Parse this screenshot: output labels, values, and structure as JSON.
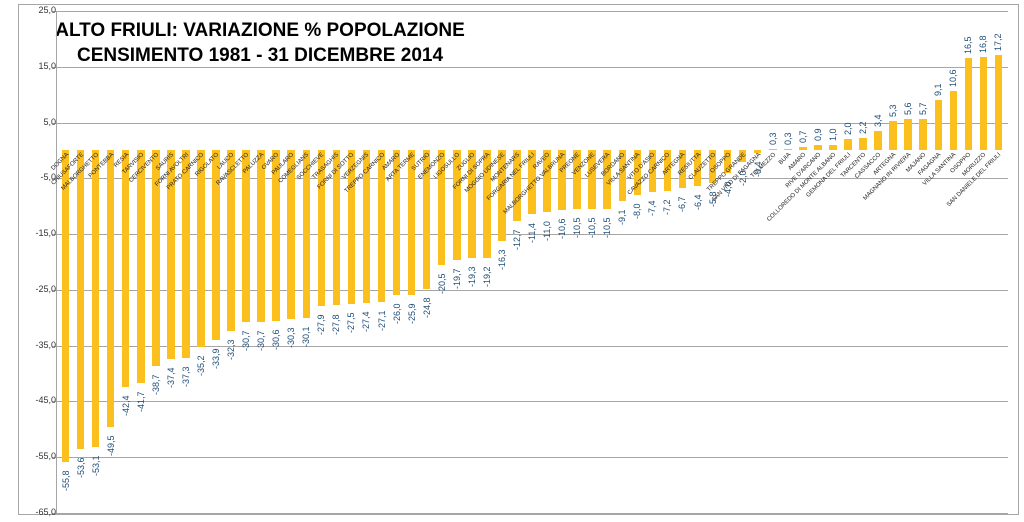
{
  "chart_data": {
    "type": "bar",
    "title": "ALTO FRIULI: VARIAZIONE % POPOLAZIONE",
    "subtitle": "CENSIMENTO 1981 - 31 DICEMBRE 2014",
    "xlabel": "",
    "ylabel": "",
    "ylim": [
      -65,
      25
    ],
    "yticks": [
      "25,0",
      "15,0",
      "5,0",
      "-5,0",
      "-15,0",
      "-25,0",
      "-35,0",
      "-45,0",
      "-55,0",
      "-65,0"
    ],
    "grid": true,
    "legend": null,
    "bar_color": "#fbbf1e",
    "label_color": "#1f4e79",
    "categories": [
      "DOGNA",
      "CHIUSAFORTE",
      "MALBORGHETTO",
      "PONTEBBA",
      "RESIA",
      "TARVISIO",
      "CERCIVENTO",
      "SAURIS",
      "FORNI AVOLTRI",
      "PRATO CARNICO",
      "RIGOLATO",
      "LAUCO",
      "RAVASCLETTO",
      "PALUZZA",
      "OVARO",
      "PAULARO",
      "COMEGLIANS",
      "SOCCHIEVE",
      "TRASAGHIS",
      "FORNI DI SOTTO",
      "VERZEGNIS",
      "TREPPO CARNICO",
      "AMARO",
      "ARTA TERME",
      "SUTRIO",
      "ENEMONZO",
      "LIGOSULLO",
      "ZUGLIO",
      "FORNI DI SOPRA",
      "MOGGIO UDINESE",
      "MONTENARS",
      "FORGARIA NEL FRIULI",
      "RAVEO",
      "MALBORGHETTO VALBRUNA",
      "PREONE",
      "VENZONE",
      "LUSEVERA",
      "BORDANO",
      "VILLA SANTINA",
      "VITO D'ASIO",
      "CAVAZZO CARNICO",
      "ARTEGNA",
      "RESIUTTA",
      "CLAUZETTO",
      "OSOPPO",
      "TREPPO GRANDE",
      "SAN VITO DI FAGAGNA",
      "TOLMEZZO",
      "BUIA",
      "AMARO",
      "RIVE D'ARCANO",
      "COLLOREDO DI MONTE ALBANO",
      "GEMONA DEL FRIULI",
      "TARCENTO",
      "CASSACCO",
      "ARTEGNA",
      "MAGNANO IN RIVIERA",
      "MAJANO",
      "FAGAGNA",
      "VILLA SANTINA",
      "OSOPPO",
      "MORUZZO",
      "SAN DANIELE DEL FRIULI"
    ],
    "values": [
      -55.8,
      -53.6,
      -53.1,
      -49.5,
      -42.4,
      -41.7,
      -38.7,
      -37.4,
      -37.3,
      -35.2,
      -33.9,
      -32.3,
      -30.7,
      -30.7,
      -30.6,
      -30.3,
      -30.1,
      -27.9,
      -27.8,
      -27.5,
      -27.4,
      -27.1,
      -26.0,
      -25.9,
      -24.8,
      -20.5,
      -19.7,
      -19.3,
      -19.2,
      -16.3,
      -12.7,
      -11.4,
      -11.0,
      -10.6,
      -10.5,
      -10.5,
      -10.5,
      -9.1,
      -8.0,
      -7.4,
      -7.2,
      -6.7,
      -6.4,
      -5.8,
      -4.0,
      -2.0,
      -0.4,
      0.3,
      0.3,
      0.7,
      0.9,
      1.0,
      2.0,
      2.2,
      3.4,
      5.3,
      5.6,
      5.7,
      9.1,
      10.6,
      16.5,
      16.8,
      17.2
    ],
    "value_labels": [
      "-55,8",
      "-53,6",
      "-53,1",
      "-49,5",
      "-42,4",
      "-41,7",
      "-38,7",
      "-37,4",
      "-37,3",
      "-35,2",
      "-33,9",
      "-32,3",
      "-30,7",
      "-30,7",
      "-30,6",
      "-30,3",
      "-30,1",
      "-27,9",
      "-27,8",
      "-27,5",
      "-27,4",
      "-27,1",
      "-26,0",
      "-25,9",
      "-24,8",
      "-20,5",
      "-19,7",
      "-19,3",
      "-19,2",
      "-16,3",
      "-12,7",
      "-11,4",
      "-11,0",
      "-10,6",
      "-10,5",
      "-10,5",
      "-10,5",
      "-9,1",
      "-8,0",
      "-7,4",
      "-7,2",
      "-6,7",
      "-6,4",
      "-5,8",
      "-4,0",
      "-2,0",
      "-0,4",
      "0,3",
      "0,3",
      "0,7",
      "0,9",
      "1,0",
      "2,0",
      "2,2",
      "3,4",
      "5,3",
      "5,6",
      "5,7",
      "9,1",
      "10,6",
      "16,5",
      "16,8",
      "17,2"
    ]
  }
}
